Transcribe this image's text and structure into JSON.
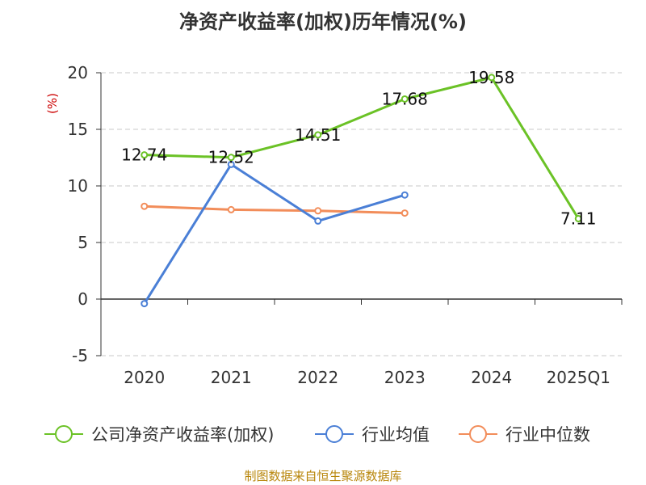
{
  "title": "净资产收益率(加权)历年情况(%)",
  "footer": "制图数据来自恒生聚源数据库",
  "chart_data": {
    "type": "line",
    "title": "净资产收益率(加权)历年情况(%)",
    "ylabel": "(%)",
    "categories": [
      "2020",
      "2021",
      "2022",
      "2023",
      "2024",
      "2025Q1"
    ],
    "ylim": [
      -5,
      20
    ],
    "yticks": [
      -5,
      0,
      5,
      10,
      15,
      20
    ],
    "grid": true,
    "legend_position": "bottom",
    "series": [
      {
        "name": "公司净资产收益率(加权)",
        "color": "#6bc226",
        "values": [
          12.74,
          12.52,
          14.51,
          17.68,
          19.58,
          7.11
        ],
        "labels": [
          "12.74",
          "12.52",
          "14.51",
          "17.68",
          "19.58",
          "7.11"
        ]
      },
      {
        "name": "行业均值",
        "color": "#4a7fd6",
        "values": [
          -0.4,
          11.9,
          6.9,
          9.2,
          null,
          null
        ]
      },
      {
        "name": "行业中位数",
        "color": "#f28d5a",
        "values": [
          8.2,
          7.9,
          7.8,
          7.6,
          null,
          null
        ]
      }
    ]
  }
}
